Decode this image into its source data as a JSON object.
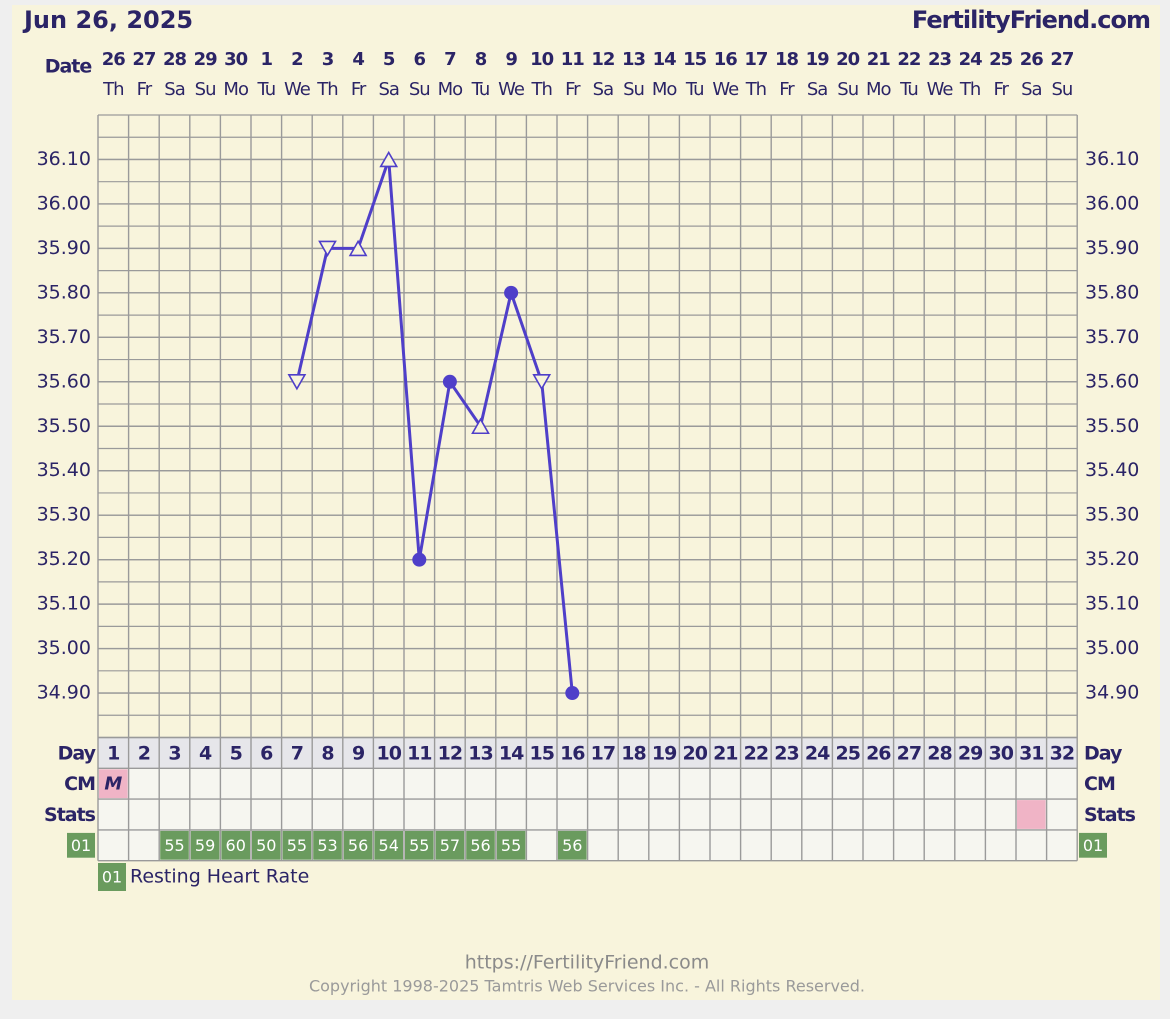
{
  "header": {
    "date": "Jun 26, 2025",
    "site": "FertilityFriend.com"
  },
  "chart_data": {
    "type": "line",
    "date_label": "Date",
    "dates": [
      "26",
      "27",
      "28",
      "29",
      "30",
      "1",
      "2",
      "3",
      "4",
      "5",
      "6",
      "7",
      "8",
      "9",
      "10",
      "11",
      "12",
      "13",
      "14",
      "15",
      "16",
      "17",
      "18",
      "19",
      "20",
      "21",
      "22",
      "23",
      "24",
      "25",
      "26",
      "27"
    ],
    "weekdays": [
      "Th",
      "Fr",
      "Sa",
      "Su",
      "Mo",
      "Tu",
      "We",
      "Th",
      "Fr",
      "Sa",
      "Su",
      "Mo",
      "Tu",
      "We",
      "Th",
      "Fr",
      "Sa",
      "Su",
      "Mo",
      "Tu",
      "We",
      "Th",
      "Fr",
      "Sa",
      "Su",
      "Mo",
      "Tu",
      "We",
      "Th",
      "Fr",
      "Sa",
      "Su"
    ],
    "day_label": "Day",
    "categories": [
      "1",
      "2",
      "3",
      "4",
      "5",
      "6",
      "7",
      "8",
      "9",
      "10",
      "11",
      "12",
      "13",
      "14",
      "15",
      "16",
      "17",
      "18",
      "19",
      "20",
      "21",
      "22",
      "23",
      "24",
      "25",
      "26",
      "27",
      "28",
      "29",
      "30",
      "31",
      "32"
    ],
    "series": [
      {
        "color": "#4f3fc9",
        "values": [
          null,
          null,
          null,
          null,
          null,
          null,
          35.6,
          35.9,
          35.9,
          36.1,
          35.2,
          35.6,
          35.5,
          35.8,
          35.6,
          34.9,
          null,
          null,
          null,
          null,
          null,
          null,
          null,
          null,
          null,
          null,
          null,
          null,
          null,
          null,
          null,
          null
        ],
        "markers": [
          null,
          null,
          null,
          null,
          null,
          null,
          "tri-down",
          "tri-down",
          "tri-up",
          "tri-up",
          "circle",
          "circle",
          "tri-up",
          "circle",
          "tri-down",
          "circle",
          null,
          null,
          null,
          null,
          null,
          null,
          null,
          null,
          null,
          null,
          null,
          null,
          null,
          null,
          null,
          null
        ]
      }
    ],
    "ylim": [
      34.8,
      36.2
    ],
    "yticks": [
      {
        "value": 34.9,
        "label": "34.90"
      },
      {
        "value": 35.0,
        "label": "35.00"
      },
      {
        "value": 35.1,
        "label": "35.10"
      },
      {
        "value": 35.2,
        "label": "35.20"
      },
      {
        "value": 35.3,
        "label": "35.30"
      },
      {
        "value": 35.4,
        "label": "35.40"
      },
      {
        "value": 35.5,
        "label": "35.50"
      },
      {
        "value": 35.6,
        "label": "35.60"
      },
      {
        "value": 35.7,
        "label": "35.70"
      },
      {
        "value": 35.8,
        "label": "35.80"
      },
      {
        "value": 35.9,
        "label": "35.90"
      },
      {
        "value": 36.0,
        "label": "36.00"
      },
      {
        "value": 36.1,
        "label": "36.10"
      }
    ],
    "grid": true,
    "cm": {
      "label": "CM",
      "color": "#f0b4c6",
      "values": [
        "M",
        null,
        null,
        null,
        null,
        null,
        null,
        null,
        null,
        null,
        null,
        null,
        null,
        null,
        null,
        null,
        null,
        null,
        null,
        null,
        null,
        null,
        null,
        null,
        null,
        null,
        null,
        null,
        null,
        null,
        null,
        null
      ]
    },
    "stats": {
      "label": "Stats",
      "color": "#f0b4c6",
      "highlight_days": [
        31
      ]
    },
    "heart_rate": {
      "label": "01",
      "name": "Resting Heart Rate",
      "color": "#6a9b5e",
      "values": [
        null,
        null,
        55,
        59,
        60,
        50,
        55,
        53,
        56,
        54,
        55,
        57,
        56,
        55,
        null,
        56,
        null,
        null,
        null,
        null,
        null,
        null,
        null,
        null,
        null,
        null,
        null,
        null,
        null,
        null,
        null,
        null
      ]
    }
  },
  "footer": {
    "url": "https://FertilityFriend.com",
    "copyright": "Copyright 1998-2025 Tamtris Web Services Inc. - All Rights Reserved."
  }
}
